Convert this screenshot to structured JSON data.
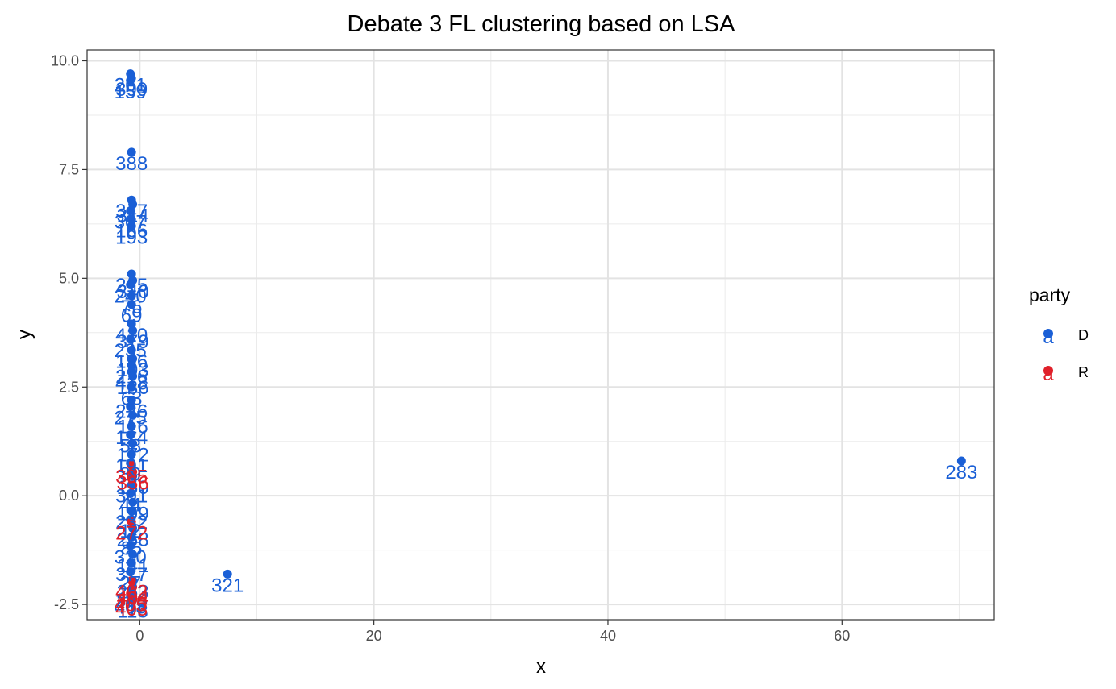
{
  "chart_data": {
    "type": "scatter",
    "title": "Debate 3 FL clustering based on LSA",
    "xlabel": "x",
    "ylabel": "y",
    "xlim": [
      -4.5,
      73
    ],
    "ylim": [
      -2.85,
      10.25
    ],
    "x_ticks": [
      0,
      20,
      40,
      60
    ],
    "x_tick_labels": [
      "0",
      "20",
      "40",
      "60"
    ],
    "x_minor_ticks": [
      10,
      30,
      50,
      70
    ],
    "y_ticks": [
      -2.5,
      0,
      2.5,
      5,
      7.5,
      10
    ],
    "y_tick_labels": [
      "-2.5",
      "0.0",
      "2.5",
      "5.0",
      "7.5",
      "10.0"
    ],
    "y_minor_ticks": [
      -1.25,
      1.25,
      3.75,
      6.25,
      8.75
    ],
    "grid": true,
    "legend": {
      "title": "party",
      "position": "right",
      "entries": [
        {
          "label": "D",
          "color": "#1a5fd6"
        },
        {
          "label": "R",
          "color": "#e0202a"
        }
      ]
    },
    "series": [
      {
        "name": "D",
        "color": "#1a5fd6",
        "points": [
          {
            "x": -0.8,
            "y": 9.7,
            "label": "261"
          },
          {
            "x": -0.7,
            "y": 9.6,
            "label": "399"
          },
          {
            "x": -0.8,
            "y": 9.55,
            "label": "159"
          },
          {
            "x": -0.7,
            "y": 7.9,
            "label": "388"
          },
          {
            "x": -0.7,
            "y": 6.8,
            "label": "347"
          },
          {
            "x": -0.6,
            "y": 6.7,
            "label": "314"
          },
          {
            "x": -0.8,
            "y": 6.55,
            "label": "307"
          },
          {
            "x": -0.7,
            "y": 6.35,
            "label": "166"
          },
          {
            "x": -0.7,
            "y": 6.2,
            "label": "193"
          },
          {
            "x": -0.7,
            "y": 5.1,
            "label": "215"
          },
          {
            "x": -0.6,
            "y": 4.95,
            "label": "340"
          },
          {
            "x": -0.8,
            "y": 4.85,
            "label": "240"
          },
          {
            "x": -0.7,
            "y": 4.6,
            "label": "76"
          },
          {
            "x": -0.7,
            "y": 4.4,
            "label": "69"
          },
          {
            "x": -0.7,
            "y": 3.95,
            "label": "410"
          },
          {
            "x": -0.6,
            "y": 3.8,
            "label": "379"
          },
          {
            "x": -0.8,
            "y": 3.6,
            "label": "235"
          },
          {
            "x": -0.7,
            "y": 3.35,
            "label": "196"
          },
          {
            "x": -0.6,
            "y": 3.15,
            "label": "103"
          },
          {
            "x": -0.7,
            "y": 3.0,
            "label": "216"
          },
          {
            "x": -0.7,
            "y": 2.85,
            "label": "418"
          },
          {
            "x": -0.6,
            "y": 2.75,
            "label": "136"
          },
          {
            "x": -0.7,
            "y": 2.5,
            "label": "63"
          },
          {
            "x": -0.7,
            "y": 2.2,
            "label": "226"
          },
          {
            "x": -0.8,
            "y": 2.05,
            "label": "275"
          },
          {
            "x": -0.6,
            "y": 1.85,
            "label": "116"
          },
          {
            "x": -0.7,
            "y": 1.6,
            "label": "124"
          },
          {
            "x": -0.8,
            "y": 1.4,
            "label": "58"
          },
          {
            "x": -0.6,
            "y": 1.2,
            "label": "172"
          },
          {
            "x": -0.7,
            "y": 0.95,
            "label": "191"
          },
          {
            "x": -0.8,
            "y": 0.75,
            "label": "89"
          },
          {
            "x": -0.6,
            "y": 0.45,
            "label": "150"
          },
          {
            "x": -0.7,
            "y": 0.25,
            "label": "301"
          },
          {
            "x": -0.8,
            "y": 0.05,
            "label": "44"
          },
          {
            "x": -0.6,
            "y": -0.15,
            "label": "199"
          },
          {
            "x": -0.7,
            "y": -0.35,
            "label": "232"
          },
          {
            "x": -0.8,
            "y": -0.55,
            "label": "12"
          },
          {
            "x": -0.6,
            "y": -0.75,
            "label": "268"
          },
          {
            "x": -0.7,
            "y": -0.95,
            "label": "85"
          },
          {
            "x": -0.8,
            "y": -1.15,
            "label": "320"
          },
          {
            "x": -0.6,
            "y": -1.35,
            "label": "141"
          },
          {
            "x": -0.7,
            "y": -1.55,
            "label": "377"
          },
          {
            "x": -0.8,
            "y": -1.75,
            "label": "27"
          },
          {
            "x": -0.6,
            "y": -1.95,
            "label": "253"
          },
          {
            "x": -0.7,
            "y": -2.15,
            "label": "366"
          },
          {
            "x": -0.8,
            "y": -2.3,
            "label": "408"
          },
          {
            "x": -0.6,
            "y": -2.4,
            "label": "118"
          },
          {
            "x": 7.5,
            "y": -1.8,
            "label": "321"
          },
          {
            "x": 70.2,
            "y": 0.8,
            "label": "283"
          }
        ]
      },
      {
        "name": "R",
        "color": "#e0202a",
        "points": [
          {
            "x": -0.7,
            "y": 0.7,
            "label": "305"
          },
          {
            "x": -0.6,
            "y": 0.55,
            "label": "356"
          },
          {
            "x": -0.7,
            "y": -0.6,
            "label": "272"
          },
          {
            "x": -0.7,
            "y": -1.95,
            "label": "402"
          },
          {
            "x": -0.6,
            "y": -2.1,
            "label": "404"
          },
          {
            "x": -0.8,
            "y": -2.25,
            "label": "405"
          },
          {
            "x": -0.7,
            "y": -2.35,
            "label": "403"
          }
        ]
      }
    ]
  }
}
